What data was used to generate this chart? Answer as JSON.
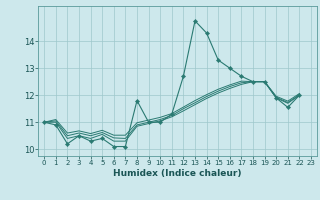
{
  "xlabel": "Humidex (Indice chaleur)",
  "background_color": "#cde8ec",
  "grid_color": "#9ec8cc",
  "line_color": "#2a7a72",
  "xlim": [
    -0.5,
    23.5
  ],
  "ylim": [
    9.75,
    15.3
  ],
  "yticks": [
    10,
    11,
    12,
    13,
    14
  ],
  "xticks": [
    0,
    1,
    2,
    3,
    4,
    5,
    6,
    7,
    8,
    9,
    10,
    11,
    12,
    13,
    14,
    15,
    16,
    17,
    18,
    19,
    20,
    21,
    22,
    23
  ],
  "y_main": [
    11.0,
    10.9,
    10.2,
    10.5,
    10.3,
    10.4,
    10.1,
    10.1,
    11.8,
    11.0,
    11.0,
    11.3,
    12.7,
    14.75,
    14.3,
    13.3,
    13.0,
    12.7,
    12.5,
    12.5,
    11.9,
    11.55,
    12.0,
    null
  ],
  "y_trend1": [
    11.0,
    11.0,
    10.4,
    10.5,
    10.4,
    10.55,
    10.3,
    10.3,
    10.85,
    10.95,
    11.05,
    11.2,
    11.42,
    11.65,
    11.88,
    12.08,
    12.25,
    12.4,
    12.5,
    12.5,
    11.9,
    11.7,
    12.0,
    null
  ],
  "y_trend2": [
    11.0,
    11.05,
    10.5,
    10.6,
    10.5,
    10.62,
    10.42,
    10.4,
    10.9,
    11.0,
    11.1,
    11.25,
    11.5,
    11.72,
    11.95,
    12.15,
    12.32,
    12.46,
    12.5,
    12.5,
    11.92,
    11.73,
    12.02,
    null
  ],
  "y_trend3": [
    11.0,
    11.1,
    10.6,
    10.68,
    10.58,
    10.7,
    10.52,
    10.52,
    10.98,
    11.08,
    11.18,
    11.32,
    11.56,
    11.8,
    12.02,
    12.22,
    12.38,
    12.52,
    12.5,
    12.5,
    11.96,
    11.78,
    12.06,
    null
  ]
}
